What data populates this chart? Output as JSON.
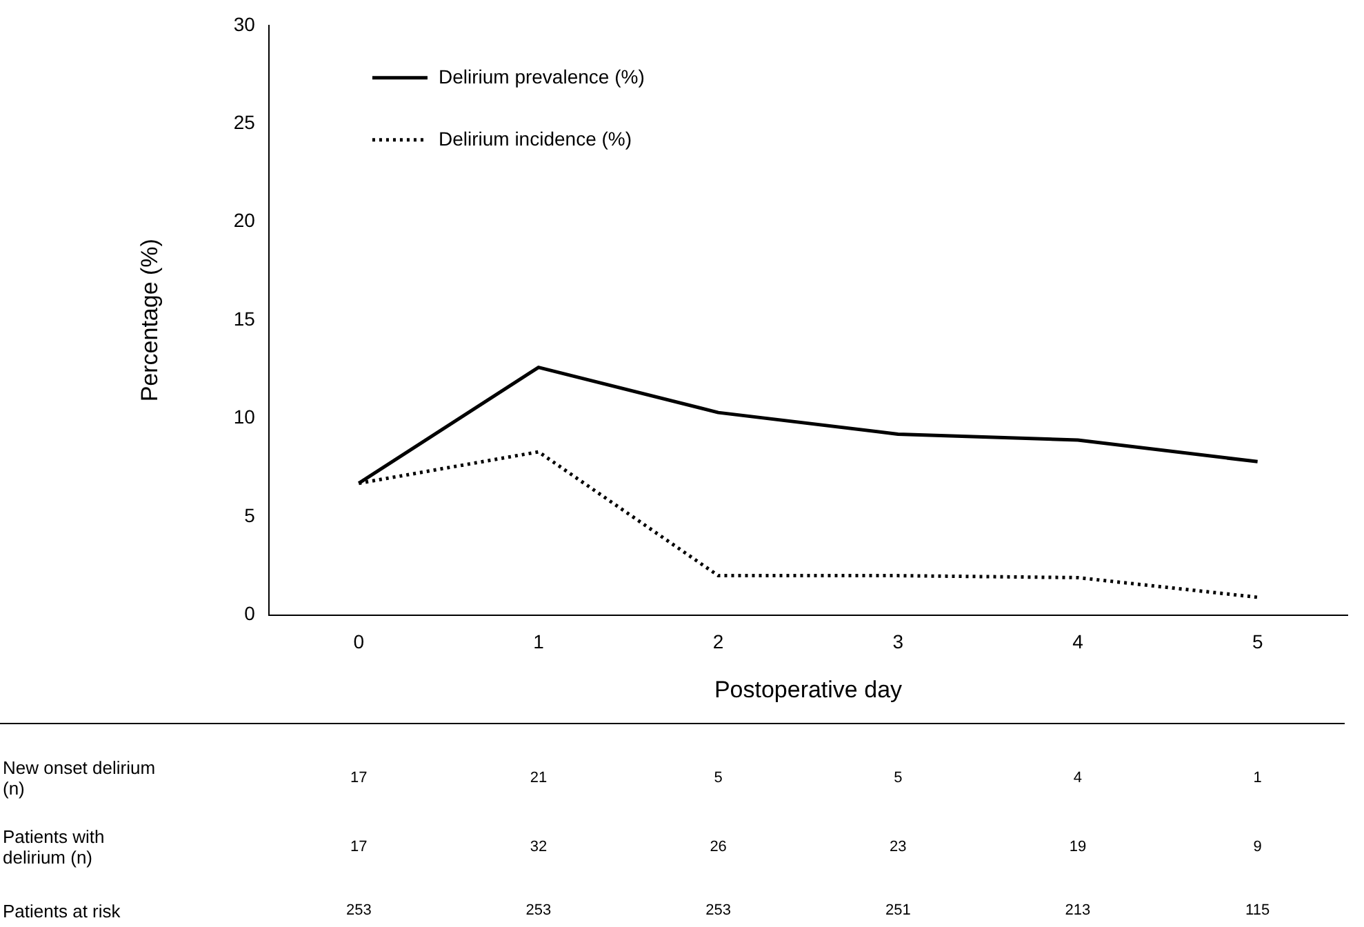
{
  "chart_data": {
    "type": "line",
    "xlabel": "Postoperative day",
    "ylabel": "Percentage (%)",
    "categories": [
      "0",
      "1",
      "2",
      "3",
      "4",
      "5"
    ],
    "series": [
      {
        "name": "Delirium prevalence (%)",
        "color": "#000000",
        "line_style": "solid",
        "values": [
          6.7,
          12.6,
          10.3,
          9.2,
          8.9,
          7.8
        ]
      },
      {
        "name": "Delirium incidence (%)",
        "color": "#000000",
        "line_style": "dotted",
        "values": [
          6.7,
          8.3,
          2.0,
          2.0,
          1.9,
          0.9
        ]
      }
    ],
    "ylim": [
      0,
      30
    ],
    "yticks": [
      0,
      5,
      10,
      15,
      20,
      25,
      30
    ],
    "grid": false,
    "legend": "top left",
    "marker": "none",
    "annotations": [
      "New onset delirium (n)",
      "17",
      "21",
      "5",
      "5",
      "4",
      "1",
      "Patients with delirium (n)",
      "17",
      "32",
      "26",
      "23",
      "19",
      "9",
      "Patients at risk",
      "253",
      "253",
      "253",
      "251",
      "213",
      "115"
    ]
  }
}
